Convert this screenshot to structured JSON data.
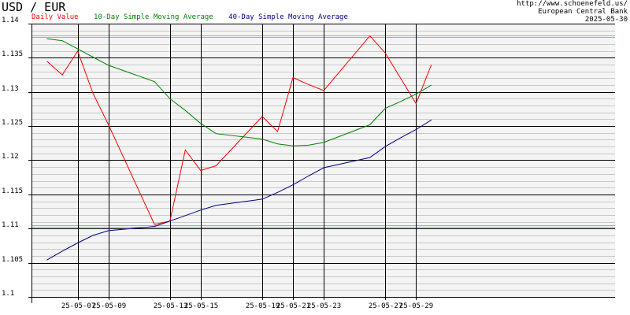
{
  "header": {
    "title": "USD / EUR",
    "source_url": "http://www.schoenefeld.us/",
    "source_name": "European Central Bank",
    "date": "2025-05-30"
  },
  "legend": [
    {
      "label": "Daily Value",
      "color": "#ff0000"
    },
    {
      "label": "10-Day Simple Moving Average",
      "color": "#008000"
    },
    {
      "label": "40-Day Simple Moving Average",
      "color": "#000080"
    }
  ],
  "chart_data": {
    "type": "line",
    "title": "USD / EUR",
    "xlabel": "",
    "ylabel": "",
    "ylim": [
      1.1,
      1.14
    ],
    "grid": true,
    "y_ticks": [
      "1.1",
      "1.105",
      "1.11",
      "1.115",
      "1.12",
      "1.125",
      "1.13",
      "1.135",
      "1.14"
    ],
    "x_tick_labels": [
      "25-05-07",
      "25-05-09",
      "25-05-13",
      "25-05-15",
      "25-05-19",
      "25-05-21",
      "25-05-23",
      "25-05-27",
      "25-05-29"
    ],
    "x": [
      "2025-05-05",
      "2025-05-06",
      "2025-05-07",
      "2025-05-08",
      "2025-05-09",
      "2025-05-12",
      "2025-05-13",
      "2025-05-14",
      "2025-05-15",
      "2025-05-16",
      "2025-05-19",
      "2025-05-20",
      "2025-05-21",
      "2025-05-22",
      "2025-05-23",
      "2025-05-26",
      "2025-05-27",
      "2025-05-28",
      "2025-05-29",
      "2025-05-30"
    ],
    "series": [
      {
        "name": "Daily Value",
        "color": "#ff0000",
        "values": [
          1.1345,
          1.1325,
          1.136,
          1.1298,
          1.1252,
          1.1106,
          1.1111,
          1.1215,
          1.1185,
          1.1192,
          1.1264,
          1.1242,
          1.1321,
          1.1311,
          1.1302,
          1.1382,
          1.1357,
          1.132,
          1.1283,
          1.134
        ]
      },
      {
        "name": "10-Day Simple Moving Average",
        "color": "#008000",
        "values": [
          1.1378,
          1.1375,
          1.1363,
          1.1351,
          1.1339,
          1.1315,
          1.129,
          1.1273,
          1.1254,
          1.1239,
          1.1231,
          1.1224,
          1.1221,
          1.1222,
          1.1226,
          1.1252,
          1.1276,
          1.1286,
          1.1297,
          1.131
        ]
      },
      {
        "name": "40-Day Simple Moving Average",
        "color": "#000080",
        "values": [
          1.1054,
          1.1067,
          1.1079,
          1.109,
          1.1097,
          1.1103,
          1.1111,
          1.1119,
          1.1127,
          1.1134,
          1.1143,
          1.1153,
          1.1164,
          1.1177,
          1.1189,
          1.1204,
          1.122,
          1.1233,
          1.1245,
          1.1259
        ]
      }
    ],
    "reference_lines": [
      {
        "value": 1.1381,
        "color": "#f0a040"
      },
      {
        "value": 1.1104,
        "color": "#f0a040"
      }
    ]
  }
}
